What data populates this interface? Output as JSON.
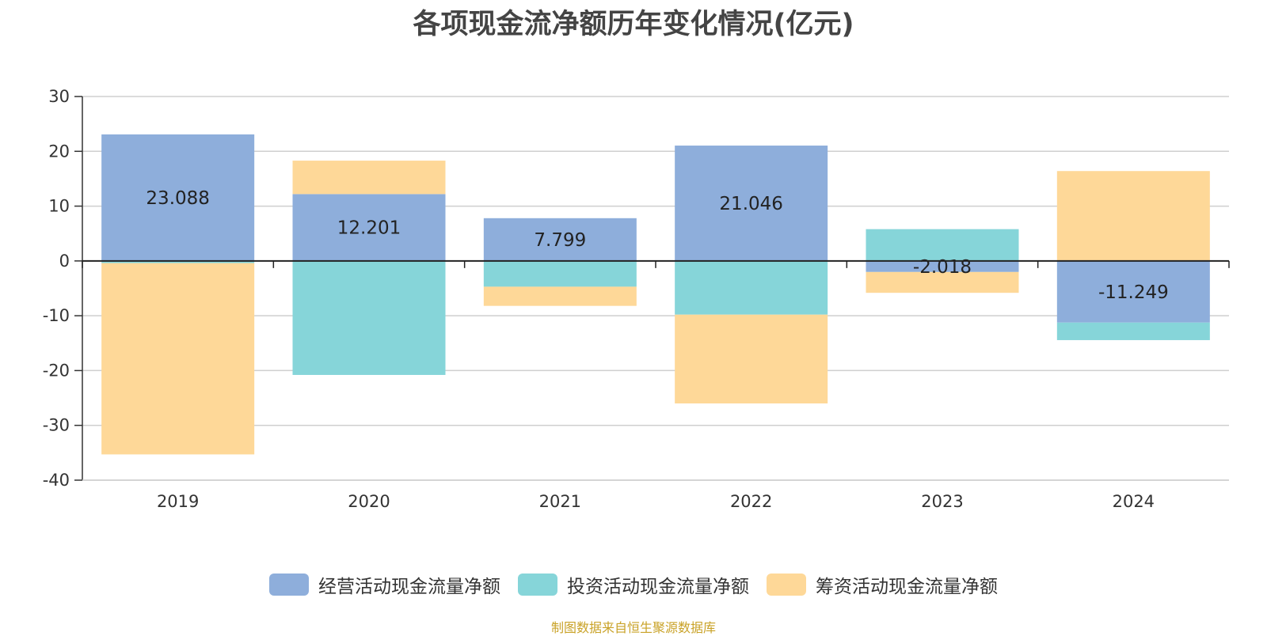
{
  "chart_data": {
    "type": "bar",
    "stacked": true,
    "title": "各项现金流净额历年变化情况(亿元)",
    "categories": [
      "2019",
      "2020",
      "2021",
      "2022",
      "2023",
      "2024"
    ],
    "ylim": [
      -40,
      30
    ],
    "yticks": [
      30,
      20,
      10,
      0,
      -10,
      -20,
      -30,
      -40
    ],
    "grid": true,
    "legend_position": "bottom",
    "series": [
      {
        "name": "经营活动现金流量净额",
        "color": "#8eaedb",
        "values": [
          23.088,
          12.201,
          7.799,
          21.046,
          -2.018,
          -11.249
        ]
      },
      {
        "name": "投资活动现金流量净额",
        "color": "#86d5d9",
        "values": [
          -0.4,
          -20.8,
          -4.7,
          -9.8,
          5.8,
          -3.2
        ]
      },
      {
        "name": "筹资活动现金流量净额",
        "color": "#fed898",
        "values": [
          -34.9,
          6.1,
          -3.5,
          -16.2,
          -3.8,
          16.4
        ]
      }
    ],
    "data_labels": [
      "23.088",
      "12.201",
      "7.799",
      "21.046",
      "-2.018",
      "-11.249"
    ]
  },
  "footer": {
    "note": "制图数据来自恒生聚源数据库"
  }
}
